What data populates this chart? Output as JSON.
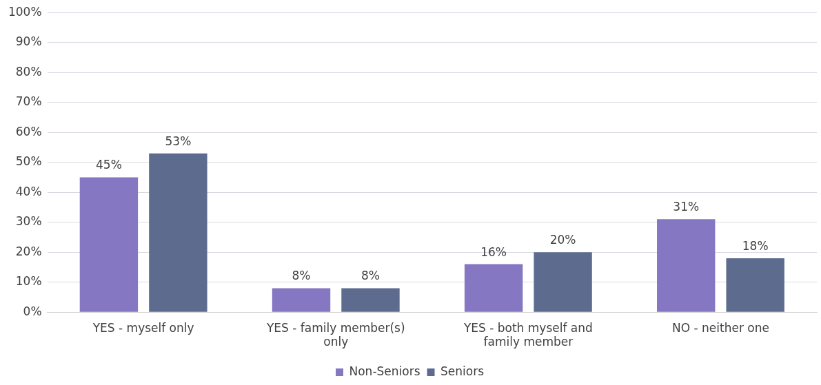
{
  "chart_data": {
    "type": "bar",
    "categories": [
      "YES - myself only",
      "YES - family member(s) only",
      "YES - both myself and family member",
      "NO - neither one"
    ],
    "series": [
      {
        "name": "Non-Seniors",
        "color": "#8677c2",
        "values": [
          45,
          8,
          16,
          31
        ],
        "value_labels": [
          "45%",
          "8%",
          "16%",
          "31%"
        ]
      },
      {
        "name": "Seniors",
        "color": "#5d6b8e",
        "values": [
          53,
          8,
          20,
          18
        ],
        "value_labels": [
          "53%",
          "8%",
          "20%",
          "18%"
        ]
      }
    ],
    "ylim": [
      0,
      100
    ],
    "yticks": [
      {
        "value": 0,
        "label": "0%"
      },
      {
        "value": 10,
        "label": "10%"
      },
      {
        "value": 20,
        "label": "20%"
      },
      {
        "value": 30,
        "label": "30%"
      },
      {
        "value": 40,
        "label": "40%"
      },
      {
        "value": 50,
        "label": "50%"
      },
      {
        "value": 60,
        "label": "60%"
      },
      {
        "value": 70,
        "label": "70%"
      },
      {
        "value": 80,
        "label": "80%"
      },
      {
        "value": 90,
        "label": "90%"
      },
      {
        "value": 100,
        "label": "100%"
      }
    ],
    "grid": "y",
    "legend": "bottom"
  }
}
